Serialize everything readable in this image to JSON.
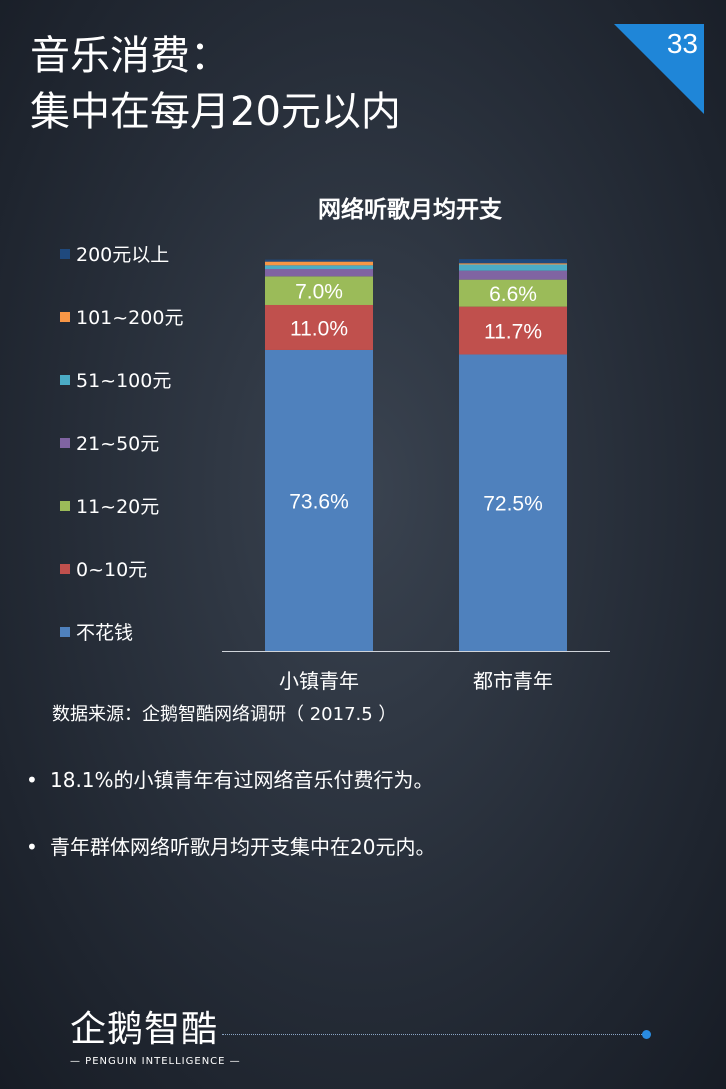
{
  "header": {
    "title_line1": "音乐消费：",
    "title_line2": "集中在每月20元以内",
    "page_number": "33"
  },
  "source": "数据来源：企鹅智酷网络调研（  2017.5 ）",
  "bullets": [
    "18.1%的小镇青年有过网络音乐付费行为。",
    "青年群体网络听歌月均开支集中在20元内。"
  ],
  "logo": {
    "main": "企鹅智酷",
    "sub": "— PENGUIN INTELLIGENCE —"
  },
  "colors": {
    "corner": "#1f86d8",
    "not_spend": "#4f81bd",
    "r0_10": "#c0504d",
    "r11_20": "#9bbb59",
    "r21_50": "#8064a2",
    "r51_100": "#4bacc6",
    "r101_200": "#f79646",
    "r200_plus": "#1f497d"
  },
  "chart_data": {
    "type": "bar",
    "stacked": true,
    "title": "网络听歌月均开支",
    "categories": [
      "小镇青年",
      "都市青年"
    ],
    "ylim": [
      0,
      100
    ],
    "series": [
      {
        "name": "不花钱",
        "values": [
          73.6,
          72.5
        ],
        "labels": [
          "73.6%",
          "72.5%"
        ],
        "color": "#4f81bd"
      },
      {
        "name": "0~10元",
        "values": [
          11.0,
          11.7
        ],
        "labels": [
          "11.0%",
          "11.7%"
        ],
        "color": "#c0504d"
      },
      {
        "name": "11~20元",
        "values": [
          7.0,
          6.6
        ],
        "labels": [
          "7.0%",
          "6.6%"
        ],
        "color": "#9bbb59"
      },
      {
        "name": "21~50元",
        "values": [
          1.8,
          2.2
        ],
        "labels": [
          "",
          ""
        ],
        "color": "#8064a2"
      },
      {
        "name": "51~100元",
        "values": [
          0.9,
          1.5
        ],
        "labels": [
          "",
          ""
        ],
        "color": "#4bacc6"
      },
      {
        "name": "101~200元",
        "values": [
          0.9,
          0.3
        ],
        "labels": [
          "",
          ""
        ],
        "color": "#f79646"
      },
      {
        "name": "200元以上",
        "values": [
          0.5,
          1.0
        ],
        "labels": [
          "",
          ""
        ],
        "color": "#1f497d"
      }
    ],
    "legend_order": [
      "200元以上",
      "101~200元",
      "51~100元",
      "21~50元",
      "11~20元",
      "0~10元",
      "不花钱"
    ],
    "legend_position": "left"
  }
}
